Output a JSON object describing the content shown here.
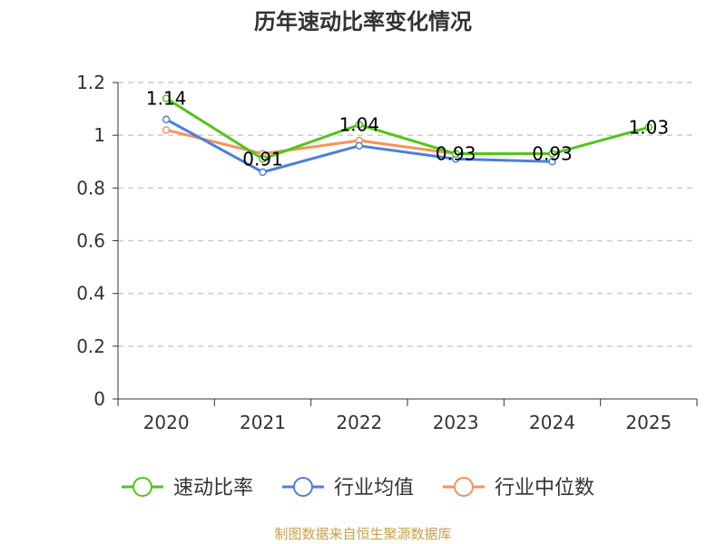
{
  "chart_data": {
    "type": "line",
    "title": "历年速动比率变化情况",
    "categories": [
      "2020",
      "2021",
      "2022",
      "2023",
      "2024",
      "2025"
    ],
    "ylim": [
      0,
      1.2
    ],
    "yticks": [
      "0",
      "0.2",
      "0.4",
      "0.6",
      "0.8",
      "1",
      "1.2"
    ],
    "ytick_values": [
      0,
      0.2,
      0.4,
      0.6,
      0.8,
      1.0,
      1.2
    ],
    "grid": true,
    "legend_position": "bottom-center",
    "series": [
      {
        "name": "速动比率",
        "color": "#52c41a",
        "values": [
          1.14,
          0.91,
          1.04,
          0.93,
          0.93,
          1.03
        ],
        "labels": [
          "1.14",
          "0.91",
          "1.04",
          "0.93",
          "0.93",
          "1.03"
        ]
      },
      {
        "name": "行业均值",
        "color": "#4e7fd8",
        "values": [
          1.06,
          0.86,
          0.96,
          0.91,
          0.9,
          null
        ]
      },
      {
        "name": "行业中位数",
        "color": "#f5935a",
        "values": [
          1.02,
          0.93,
          0.98,
          0.93,
          0.93,
          null
        ]
      }
    ],
    "source": "制图数据来自恒生聚源数据库"
  }
}
